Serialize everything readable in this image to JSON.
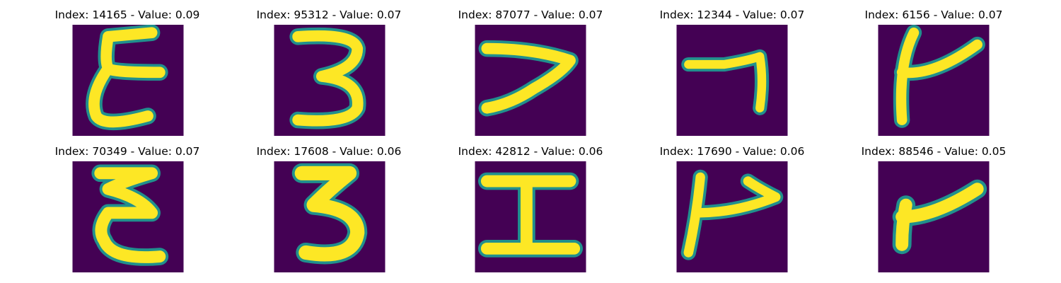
{
  "figure": {
    "panels": [
      {
        "title": "Index: 14165 - Value: 0.09",
        "glyph": "E"
      },
      {
        "title": "Index: 95312 - Value: 0.07",
        "glyph": "3"
      },
      {
        "title": "Index: 87077 - Value: 0.07",
        "glyph": "7"
      },
      {
        "title": "Index: 12344 - Value: 0.07",
        "glyph": "7"
      },
      {
        "title": "Index: 6156 - Value: 0.07",
        "glyph": "r"
      },
      {
        "title": "Index: 70349 - Value: 0.07",
        "glyph": "E"
      },
      {
        "title": "Index: 17608 - Value: 0.06",
        "glyph": "3"
      },
      {
        "title": "Index: 42812 - Value: 0.06",
        "glyph": "I"
      },
      {
        "title": "Index: 17690 - Value: 0.06",
        "glyph": "r"
      },
      {
        "title": "Index: 88546 - Value: 0.05",
        "glyph": "r"
      }
    ],
    "colors": {
      "background": "#440154",
      "stroke": "#fde725",
      "edge": "#21908d"
    }
  }
}
